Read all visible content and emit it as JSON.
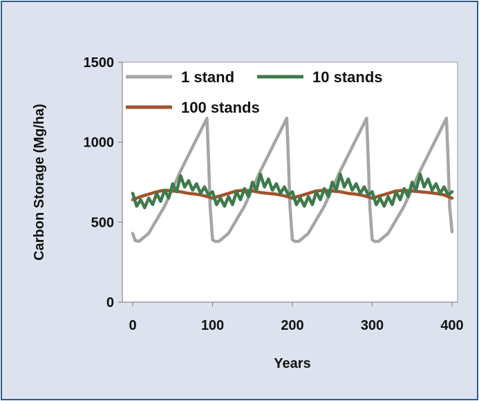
{
  "chart_data": {
    "type": "line",
    "title": "",
    "xlabel": "Years",
    "ylabel": "Carbon Storage (Mg/ha)",
    "xlim": [
      0,
      400
    ],
    "ylim": [
      0,
      1500
    ],
    "xticks": [
      "0",
      "100",
      "200",
      "300",
      "400"
    ],
    "yticks": [
      "0",
      "500",
      "1000",
      "1500"
    ],
    "grid": false,
    "legend_position": "top-left",
    "series": [
      {
        "name": "1 stand",
        "color": "#a5a5a5",
        "x": [
          0,
          3,
          8,
          20,
          40,
          60,
          80,
          93,
          95,
          97,
          100,
          103,
          108,
          120,
          140,
          160,
          180,
          193,
          195,
          197,
          200,
          203,
          208,
          220,
          240,
          260,
          280,
          293,
          295,
          297,
          300,
          303,
          308,
          320,
          340,
          360,
          380,
          393,
          395,
          397,
          400
        ],
        "values": [
          430,
          385,
          380,
          430,
          600,
          820,
          1020,
          1150,
          900,
          600,
          390,
          380,
          380,
          430,
          600,
          820,
          1020,
          1150,
          900,
          600,
          390,
          380,
          380,
          430,
          600,
          820,
          1020,
          1150,
          900,
          600,
          390,
          380,
          380,
          430,
          600,
          820,
          1020,
          1150,
          900,
          600,
          440
        ]
      },
      {
        "name": "10 stands",
        "color": "#3e7b4a",
        "x": [
          0,
          5,
          10,
          15,
          20,
          25,
          30,
          35,
          40,
          45,
          50,
          55,
          60,
          65,
          70,
          75,
          80,
          85,
          90,
          95,
          100,
          105,
          110,
          115,
          120,
          125,
          130,
          135,
          140,
          145,
          150,
          155,
          160,
          165,
          170,
          175,
          180,
          185,
          190,
          195,
          200,
          205,
          210,
          215,
          220,
          225,
          230,
          235,
          240,
          245,
          250,
          255,
          260,
          265,
          270,
          275,
          280,
          285,
          290,
          295,
          300,
          305,
          310,
          315,
          320,
          325,
          330,
          335,
          340,
          345,
          350,
          355,
          360,
          365,
          370,
          375,
          380,
          385,
          390,
          395,
          400
        ],
        "values": [
          680,
          600,
          640,
          590,
          650,
          610,
          680,
          630,
          700,
          650,
          740,
          690,
          790,
          720,
          760,
          700,
          740,
          680,
          720,
          670,
          690,
          610,
          650,
          600,
          660,
          610,
          690,
          640,
          710,
          660,
          750,
          700,
          800,
          720,
          770,
          700,
          740,
          680,
          720,
          670,
          690,
          610,
          650,
          600,
          660,
          610,
          690,
          640,
          710,
          660,
          750,
          700,
          800,
          720,
          770,
          700,
          740,
          680,
          720,
          670,
          690,
          610,
          650,
          600,
          660,
          610,
          690,
          640,
          710,
          660,
          750,
          700,
          800,
          720,
          770,
          700,
          740,
          680,
          720,
          670,
          690
        ]
      },
      {
        "name": "100 stands",
        "color": "#a0522d",
        "x": [
          0,
          10,
          20,
          30,
          40,
          50,
          60,
          70,
          80,
          90,
          100,
          110,
          120,
          130,
          140,
          150,
          160,
          170,
          180,
          190,
          200,
          210,
          220,
          230,
          240,
          250,
          260,
          270,
          280,
          290,
          300,
          310,
          320,
          330,
          340,
          350,
          360,
          370,
          380,
          390,
          400
        ],
        "values": [
          640,
          660,
          675,
          690,
          700,
          695,
          690,
          680,
          675,
          665,
          650,
          665,
          680,
          695,
          700,
          695,
          685,
          680,
          675,
          665,
          650,
          665,
          680,
          695,
          700,
          695,
          690,
          680,
          675,
          665,
          650,
          665,
          680,
          695,
          700,
          695,
          690,
          685,
          680,
          670,
          650
        ]
      }
    ]
  }
}
